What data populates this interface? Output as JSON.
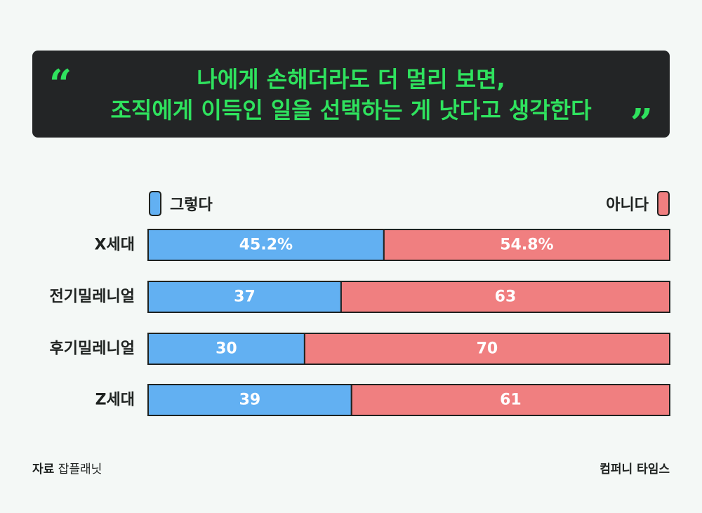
{
  "headline": {
    "line1": "나에게 손해더라도 더 멀리 보면,",
    "line2": "조직에게 이득인 일을 선택하는 게 낫다고 생각한다",
    "open_quote": "“",
    "close_quote": "”"
  },
  "chart_data": {
    "type": "bar",
    "orientation": "horizontal",
    "stacked": true,
    "categories": [
      "X세대",
      "전기밀레니얼",
      "후기밀레니얼",
      "Z세대"
    ],
    "series": [
      {
        "name": "그렇다",
        "values": [
          45.2,
          37,
          30,
          39
        ],
        "labels": [
          "45.2%",
          "37",
          "30",
          "39"
        ],
        "color": "#62b0f2"
      },
      {
        "name": "아니다",
        "values": [
          54.8,
          63,
          70,
          61
        ],
        "labels": [
          "54.8%",
          "63",
          "70",
          "61"
        ],
        "color": "#f07f80"
      }
    ],
    "xlim": [
      0,
      100
    ],
    "legend": "top",
    "grid": false
  },
  "footer": {
    "source_key": "자료",
    "source_value": "잡플래닛",
    "brand": "컴퍼니 타임스"
  }
}
